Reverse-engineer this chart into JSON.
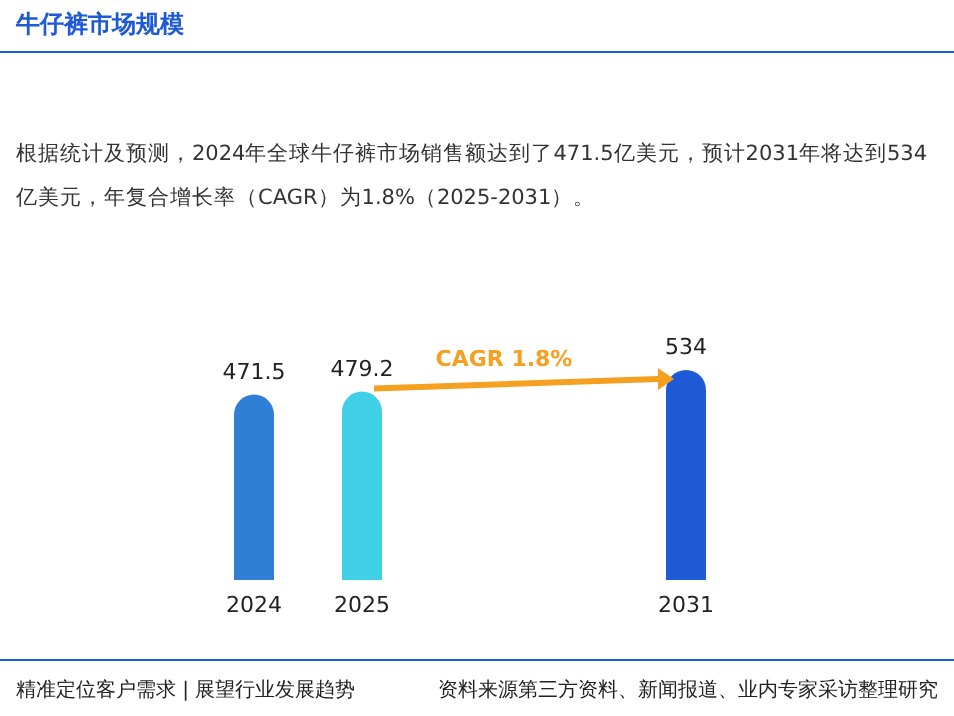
{
  "chart_data": {
    "type": "bar",
    "title": "牛仔裤市场规模",
    "subtitle": "根据统计及预测，2024年全球牛仔裤市场销售额达到了471.5亿美元，预计2031年将达到534亿美元，年复合增长率（CAGR）为1.8%（2025-2031）。",
    "categories": [
      "2024",
      "2025",
      null,
      null,
      "2031"
    ],
    "values": [
      471.5,
      479.2,
      null,
      null,
      534
    ],
    "colors": [
      "#2f7fd6",
      "#3fcfe6",
      null,
      null,
      "#1f5ad6"
    ],
    "data_labels": true,
    "annotations": [
      "CAGR 1.8%",
      "精准定位客户需求 | 展望行业发展趋势",
      "资料来源第三方资料、新闻报道、业内专家采访整理研究"
    ]
  }
}
